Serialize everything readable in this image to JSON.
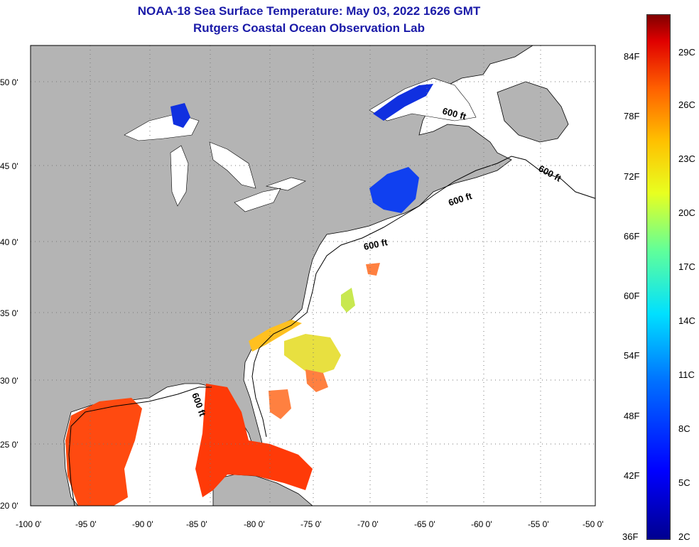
{
  "title_line1": "NOAA-18 Sea Surface Temperature:  May 03, 2022 1626 GMT",
  "title_line2": "Rutgers Coastal Ocean Observation Lab",
  "lon_ticks": [
    "-100 0'",
    "-95 0'",
    "-90 0'",
    "-85 0'",
    "-80 0'",
    "-75 0'",
    "-70 0'",
    "-65 0'",
    "-60 0'",
    "-55 0'",
    "-50 0'"
  ],
  "lat_ticks": [
    "50 0'",
    "45 0'",
    "40 0'",
    "35 0'",
    "30 0'",
    "25 0'",
    "20 0'"
  ],
  "contour_label": "600 ft",
  "colorbar": {
    "fahrenheit": [
      "84F",
      "78F",
      "72F",
      "66F",
      "60F",
      "54F",
      "48F",
      "42F",
      "36F"
    ],
    "celsius": [
      "29C",
      "26C",
      "23C",
      "20C",
      "17C",
      "14C",
      "11C",
      "8C",
      "5C",
      "2C"
    ]
  },
  "colors": {
    "land": "#b4b4b4",
    "title": "#1a1aa8",
    "warm": "#ff4a10",
    "cold": "#1030e0"
  }
}
